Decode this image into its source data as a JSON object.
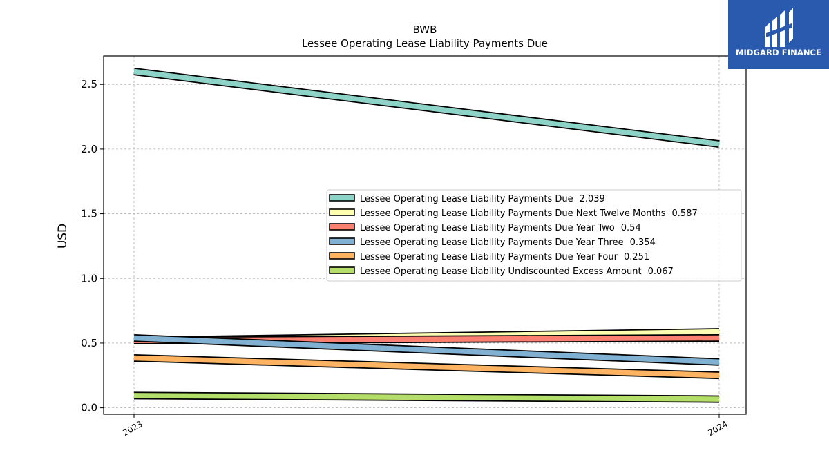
{
  "brand": {
    "name": "MIDGARD FINANCE",
    "color": "#2a5aad"
  },
  "chart_data": {
    "type": "line",
    "title": "BWB",
    "subtitle": "Lessee Operating Lease Liability Payments Due",
    "xlabel": "",
    "ylabel": "USD",
    "categories": [
      "2023",
      "2024"
    ],
    "ylim": [
      -0.05,
      2.72
    ],
    "yticks": [
      0.0,
      0.5,
      1.0,
      1.5,
      2.0,
      2.5
    ],
    "ytick_labels": [
      "0.0",
      "0.5",
      "1.0",
      "1.5",
      "2.0",
      "2.5"
    ],
    "grid": true,
    "legend_position": "center-right",
    "series": [
      {
        "name": "Lessee Operating Lease Liability Payments Due",
        "last_label": "2.039",
        "values": [
          2.6,
          2.039
        ],
        "color": "#8dd3c7"
      },
      {
        "name": "Lessee Operating Lease Liability Payments Due Next Twelve Months",
        "last_label": "0.587",
        "values": [
          0.52,
          0.587
        ],
        "color": "#ffffb3"
      },
      {
        "name": "Lessee Operating Lease Liability Payments Due Year Two",
        "last_label": "0.54",
        "values": [
          0.52,
          0.54
        ],
        "color": "#fb8072"
      },
      {
        "name": "Lessee Operating Lease Liability Payments Due Year Three",
        "last_label": "0.354",
        "values": [
          0.54,
          0.354
        ],
        "color": "#80b1d3"
      },
      {
        "name": "Lessee Operating Lease Liability Payments Due Year Four",
        "last_label": "0.251",
        "values": [
          0.385,
          0.251
        ],
        "color": "#fdb462"
      },
      {
        "name": "Lessee Operating Lease Liability Undiscounted Excess Amount",
        "last_label": "0.067",
        "values": [
          0.095,
          0.067
        ],
        "color": "#b3de69"
      }
    ]
  }
}
